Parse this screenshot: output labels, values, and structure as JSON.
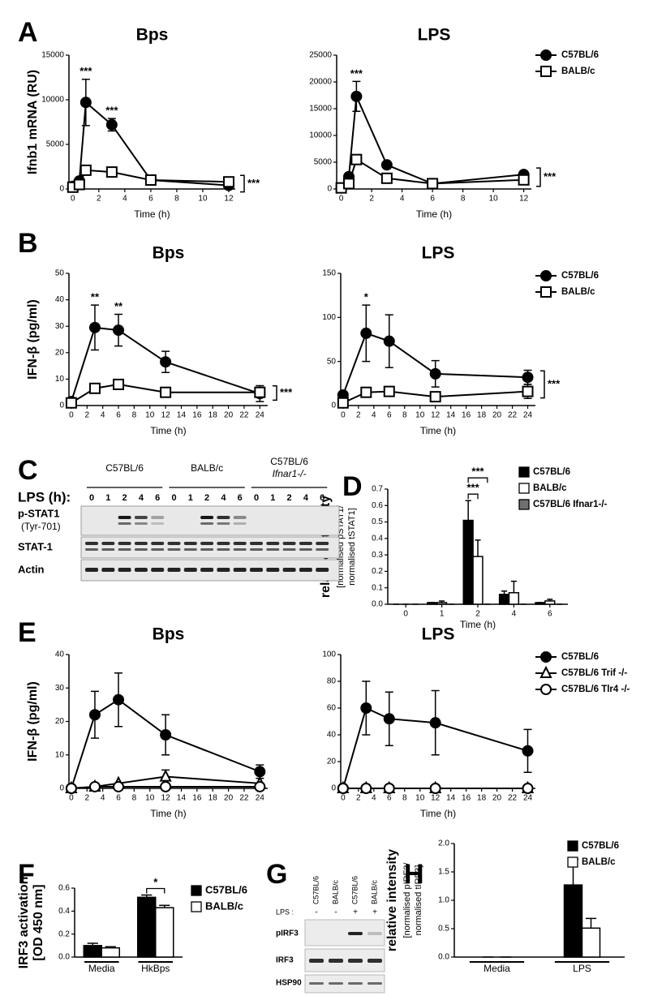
{
  "panel_labels": [
    "A",
    "B",
    "C",
    "D",
    "E",
    "F",
    "G",
    "H"
  ],
  "blot_c": {
    "treatment_label": "LPS (h):",
    "groups": [
      [
        "C57BL/6"
      ],
      [
        "BALB/c"
      ],
      [
        "C57BL/6",
        "Ifnar1-/-"
      ]
    ],
    "lanes": [
      "0",
      "1",
      "2",
      "4",
      "6"
    ],
    "rows": [
      "p-STAT1",
      "(Tyr-701)",
      "STAT-1",
      "Actin"
    ]
  },
  "blot_g": {
    "lanes": [
      "C57BL/6",
      "BALB/c",
      "C57BL/6",
      "BALB/c"
    ],
    "treatment_label": "LPS :",
    "treatment": [
      "-",
      "-",
      "+",
      "+"
    ],
    "rows": [
      "pIRF3",
      "IRF3",
      "HSP90"
    ]
  },
  "chart_data": [
    {
      "type": "line",
      "title": "Bps",
      "ylabel": "Ifnb1 mRNA (RU)",
      "xlabel": "Time (h)",
      "x": [
        0,
        0.5,
        1,
        3,
        6,
        12
      ],
      "xlim": [
        -0.3,
        12.5
      ],
      "xticks": [
        0,
        2,
        4,
        6,
        8,
        10,
        12
      ],
      "ylim": [
        0,
        15000
      ],
      "yticks": [
        0,
        5000,
        10000,
        15000
      ],
      "series": [
        {
          "color": "#000000",
          "marker": "circle",
          "marker_fill": "filled",
          "values": [
            300,
            900,
            9700,
            7200,
            1000,
            400
          ],
          "errors": [
            0,
            0,
            2600,
            700,
            0,
            0
          ]
        },
        {
          "color": "#000000",
          "marker": "square",
          "marker_fill": "open",
          "values": [
            200,
            500,
            2100,
            1900,
            1000,
            800
          ],
          "errors": [
            0,
            0,
            0,
            0,
            0,
            0
          ]
        }
      ],
      "annotations": [
        {
          "x": 1,
          "text": "***"
        },
        {
          "x": 3,
          "text": "***"
        }
      ],
      "bracket_label": "***"
    },
    {
      "type": "line",
      "title": "LPS",
      "xlabel": "Time (h)",
      "x": [
        0,
        0.5,
        1,
        3,
        6,
        12
      ],
      "xlim": [
        -0.3,
        12.5
      ],
      "xticks": [
        0,
        2,
        4,
        6,
        8,
        10,
        12
      ],
      "ylim": [
        0,
        25000
      ],
      "yticks": [
        0,
        5000,
        10000,
        15000,
        20000,
        25000
      ],
      "series": [
        {
          "name": "C57BL/6",
          "color": "#000000",
          "marker": "circle",
          "marker_fill": "filled",
          "values": [
            200,
            2300,
            17300,
            4500,
            1000,
            2700
          ],
          "errors": [
            0,
            700,
            2800,
            0,
            0,
            500
          ]
        },
        {
          "name": "BALB/c",
          "color": "#000000",
          "marker": "square",
          "marker_fill": "open",
          "values": [
            200,
            1000,
            5500,
            2000,
            1000,
            1700
          ],
          "errors": [
            0,
            0,
            0,
            0,
            0,
            0
          ]
        }
      ],
      "annotations": [
        {
          "x": 1,
          "text": "***"
        }
      ],
      "bracket_label": "***",
      "legend": "right"
    },
    {
      "type": "line",
      "title": "Bps",
      "ylabel": "IFN-β (pg/ml)",
      "xlabel": "Time (h)",
      "x": [
        0,
        3,
        6,
        12,
        24
      ],
      "xlim": [
        -0.3,
        25
      ],
      "xticks": [
        0,
        2,
        4,
        6,
        8,
        10,
        12,
        14,
        16,
        18,
        20,
        22,
        24
      ],
      "ylim": [
        0,
        50
      ],
      "yticks": [
        0,
        10,
        20,
        30,
        40,
        50
      ],
      "series": [
        {
          "color": "#000000",
          "marker": "circle",
          "marker_fill": "filled",
          "values": [
            1.5,
            29.5,
            28.5,
            16.5,
            4.5
          ],
          "errors": [
            0,
            8.5,
            6,
            4,
            3
          ]
        },
        {
          "color": "#000000",
          "marker": "square",
          "marker_fill": "open",
          "values": [
            1,
            6.5,
            8,
            5,
            5
          ],
          "errors": [
            0,
            0,
            0,
            0,
            0
          ]
        }
      ],
      "annotations": [
        {
          "x": 3,
          "text": "**"
        },
        {
          "x": 6,
          "text": "**"
        }
      ],
      "bracket_label": "***"
    },
    {
      "type": "line",
      "title": "LPS",
      "xlabel": "Time (h)",
      "x": [
        0,
        3,
        6,
        12,
        24
      ],
      "xlim": [
        -0.3,
        25
      ],
      "xticks": [
        0,
        2,
        4,
        6,
        8,
        10,
        12,
        14,
        16,
        18,
        20,
        22,
        24
      ],
      "ylim": [
        0,
        150
      ],
      "yticks": [
        0,
        50,
        100,
        150
      ],
      "series": [
        {
          "name": "C57BL/6",
          "color": "#000000",
          "marker": "circle",
          "marker_fill": "filled",
          "values": [
            12,
            82,
            73,
            36,
            32
          ],
          "errors": [
            0,
            32,
            30,
            15,
            8
          ]
        },
        {
          "name": "BALB/c",
          "color": "#000000",
          "marker": "square",
          "marker_fill": "open",
          "values": [
            3,
            15,
            16,
            10,
            16
          ],
          "errors": [
            0,
            0,
            0,
            0,
            8
          ]
        }
      ],
      "annotations": [
        {
          "x": 3,
          "text": "*"
        }
      ],
      "bracket_label": "***",
      "legend": "right"
    },
    {
      "type": "bar",
      "ylabel": [
        "relative intensity",
        "[normalised pSTAT1/",
        "normalised tSTAT1]"
      ],
      "xlabel": "Time (h)",
      "categories": [
        "0",
        "1",
        "2",
        "4",
        "6"
      ],
      "ylim": [
        0,
        0.7
      ],
      "yticks": [
        {
          "value": 0,
          "label": "0.0"
        },
        {
          "value": 0.1,
          "label": "0.1"
        },
        {
          "value": 0.2,
          "label": "0.2"
        },
        {
          "value": 0.3,
          "label": "0.3"
        },
        {
          "value": 0.4,
          "label": "0.4"
        },
        {
          "value": 0.5,
          "label": "0.5"
        },
        {
          "value": 0.6,
          "label": "0.6"
        },
        {
          "value": 0.7,
          "label": "0.7"
        }
      ],
      "series": [
        {
          "name": "C57BL/6",
          "color": "#000000",
          "values": [
            0,
            0.01,
            0.51,
            0.06,
            0.01
          ],
          "errors": [
            0,
            0,
            0.12,
            0.02,
            0
          ]
        },
        {
          "name": "BALB/c",
          "color": "#ffffff",
          "values": [
            0,
            0.01,
            0.29,
            0.07,
            0.02
          ],
          "errors": [
            0,
            0.01,
            0.1,
            0.07,
            0.01
          ]
        },
        {
          "name": "C57BL/6 Ifnar1-/-",
          "color": "#707070",
          "values": [
            0,
            0,
            0,
            0,
            0
          ],
          "errors": [
            0,
            0,
            0,
            0,
            0
          ]
        }
      ],
      "annotations": [
        "***",
        "***"
      ],
      "legend": "upper-right"
    },
    {
      "type": "line",
      "title": "Bps",
      "ylabel": "IFN-β (pg/ml)",
      "xlabel": "Time (h)",
      "x": [
        0,
        3,
        6,
        12,
        24
      ],
      "xlim": [
        -0.3,
        25
      ],
      "xticks": [
        0,
        2,
        4,
        6,
        8,
        10,
        12,
        14,
        16,
        18,
        20,
        22,
        24
      ],
      "ylim": [
        0,
        40
      ],
      "yticks": [
        0,
        10,
        20,
        30,
        40
      ],
      "series": [
        {
          "color": "#000000",
          "marker": "circle",
          "marker_fill": "filled",
          "values": [
            0,
            22,
            26.5,
            16,
            5
          ],
          "errors": [
            0,
            7,
            8,
            6,
            2
          ]
        },
        {
          "color": "#000000",
          "marker": "triangle",
          "marker_fill": "open",
          "values": [
            0,
            0.5,
            1.5,
            3.5,
            1.5
          ],
          "errors": [
            0,
            0,
            0,
            2,
            0
          ]
        },
        {
          "color": "#000000",
          "marker": "circle",
          "marker_fill": "open",
          "values": [
            0,
            0.5,
            0.5,
            0.5,
            0.5
          ],
          "errors": [
            0,
            0,
            0,
            0,
            0
          ]
        }
      ]
    },
    {
      "type": "line",
      "title": "LPS",
      "xlabel": "Time (h)",
      "x": [
        0,
        3,
        6,
        12,
        24
      ],
      "xlim": [
        -0.3,
        25
      ],
      "xticks": [
        0,
        2,
        4,
        6,
        8,
        10,
        12,
        14,
        16,
        18,
        20,
        22,
        24
      ],
      "ylim": [
        0,
        100
      ],
      "yticks": [
        0,
        20,
        40,
        60,
        80,
        100
      ],
      "series": [
        {
          "name": "C57BL/6",
          "color": "#000000",
          "marker": "circle",
          "marker_fill": "filled",
          "values": [
            0,
            60,
            52,
            49,
            28
          ],
          "errors": [
            0,
            20,
            20,
            24,
            16
          ]
        },
        {
          "name": "C57BL/6 Trif -/-",
          "color": "#000000",
          "marker": "triangle",
          "marker_fill": "open",
          "values": [
            0,
            0,
            0,
            0,
            0
          ],
          "errors": [
            0,
            0,
            0,
            0,
            0
          ]
        },
        {
          "name": "C57BL/6 Tlr4 -/-",
          "color": "#000000",
          "marker": "circle",
          "marker_fill": "open",
          "values": [
            0,
            0,
            0,
            0,
            0
          ],
          "errors": [
            0,
            0,
            0,
            0,
            0
          ]
        }
      ],
      "legend": "right"
    },
    {
      "type": "bar",
      "ylabel": [
        "IRF3 activation",
        "[OD 450 nm]"
      ],
      "categories": [
        "Media",
        "HkBps"
      ],
      "ylim": [
        0,
        0.6
      ],
      "yticks": [
        {
          "value": 0,
          "label": "0.0"
        },
        {
          "value": 0.2,
          "label": "0.2"
        },
        {
          "value": 0.4,
          "label": "0.4"
        },
        {
          "value": 0.6,
          "label": "0.6"
        }
      ],
      "series": [
        {
          "name": "C57BL/6",
          "color": "#000000",
          "values": [
            0.1,
            0.52
          ],
          "errors": [
            0.02,
            0.02
          ]
        },
        {
          "name": "BALB/c",
          "color": "#ffffff",
          "values": [
            0.08,
            0.43
          ],
          "errors": [
            0.01,
            0.02
          ]
        }
      ],
      "annotations": [
        "*"
      ],
      "group_underline": true,
      "legend": "right"
    },
    {
      "type": "bar",
      "ylabel": [
        "relative intensity",
        "[normalised pIRF3/",
        "normalised tIRF3]"
      ],
      "categories": [
        "Media",
        "LPS"
      ],
      "ylim": [
        0,
        2.0
      ],
      "yticks": [
        {
          "value": 0,
          "label": "0.0"
        },
        {
          "value": 0.5,
          "label": "0.5"
        },
        {
          "value": 1.0,
          "label": "1.0"
        },
        {
          "value": 1.5,
          "label": "1.5"
        },
        {
          "value": 2.0,
          "label": "2.0"
        }
      ],
      "series": [
        {
          "name": "C57BL/6",
          "color": "#000000",
          "values": [
            0,
            1.27
          ],
          "errors": [
            0,
            0.45
          ]
        },
        {
          "name": "BALB/c",
          "color": "#ffffff",
          "values": [
            0,
            0.51
          ],
          "errors": [
            0,
            0.17
          ]
        }
      ],
      "group_underline": true,
      "legend": "upper-right"
    }
  ]
}
